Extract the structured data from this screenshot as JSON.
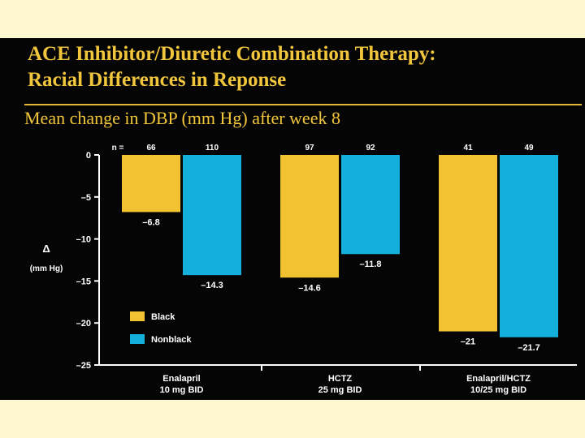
{
  "title_line1": "ACE Inhibitor/Diuretic Combination Therapy:",
  "title_line2": "Racial Differences in Reponse",
  "subtitle": "Mean change in DBP (mm Hg) after week 8",
  "chart_data": {
    "type": "bar",
    "ylabel_symbol": "Δ",
    "ylabel_unit": "(mm Hg)",
    "n_label": "n =",
    "ylim": [
      -25,
      0
    ],
    "yticks": [
      0,
      -5,
      -10,
      -15,
      -20,
      -25
    ],
    "ytick_labels": [
      "0",
      "–5",
      "–10",
      "–15",
      "–20",
      "–25"
    ],
    "categories": [
      {
        "line1": "Enalapril",
        "line2": "10 mg BID"
      },
      {
        "line1": "HCTZ",
        "line2": "25 mg BID"
      },
      {
        "line1": "Enalapril/HCTZ",
        "line2": "10/25 mg BID"
      }
    ],
    "series": [
      {
        "name": "Black",
        "color": "#f2c232",
        "values": [
          -6.8,
          -14.6,
          -21
        ],
        "value_labels": [
          "–6.8",
          "–14.6",
          "–21"
        ],
        "n": [
          "66",
          "97",
          "41"
        ]
      },
      {
        "name": "Nonblack",
        "color": "#14b0dc",
        "values": [
          -14.3,
          -11.8,
          -21.7
        ],
        "value_labels": [
          "–14.3",
          "–11.8",
          "–21.7"
        ],
        "n": [
          "110",
          "92",
          "49"
        ]
      }
    ],
    "legend_position": "bottom-left"
  }
}
